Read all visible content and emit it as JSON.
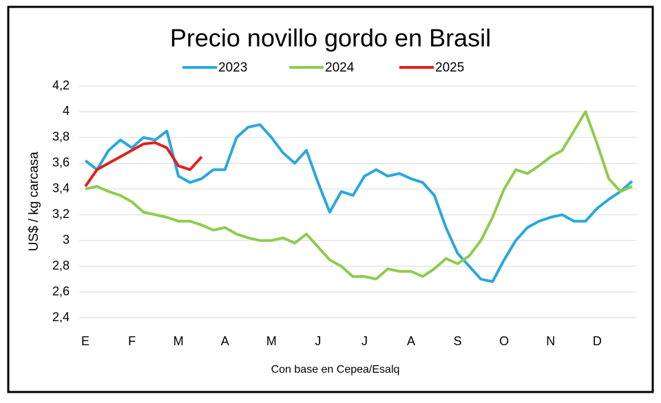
{
  "chart_data": {
    "type": "line",
    "title": "Precio novillo gordo en Brasil",
    "y_label": "US$ / kg carcasa",
    "note": "Con base en Cepea/Esalq",
    "categories": [
      "E",
      null,
      null,
      null,
      "F",
      null,
      null,
      null,
      "M",
      null,
      null,
      null,
      "A",
      null,
      null,
      null,
      "M",
      null,
      null,
      null,
      "J",
      null,
      null,
      null,
      "J",
      null,
      null,
      null,
      "A",
      null,
      null,
      null,
      "S",
      null,
      null,
      null,
      "O",
      null,
      null,
      null,
      "N",
      null,
      null,
      null,
      "D",
      null,
      null,
      null
    ],
    "series": [
      {
        "name": "2023",
        "color": "#2aa7e0",
        "values": [
          3.62,
          3.55,
          3.7,
          3.78,
          3.72,
          3.8,
          3.78,
          3.85,
          3.5,
          3.45,
          3.48,
          3.55,
          3.55,
          3.8,
          3.88,
          3.9,
          3.8,
          3.68,
          3.6,
          3.7,
          3.45,
          3.22,
          3.38,
          3.35,
          3.5,
          3.55,
          3.5,
          3.52,
          3.48,
          3.45,
          3.35,
          3.1,
          2.9,
          2.8,
          2.7,
          2.68,
          2.85,
          3.0,
          3.1,
          3.15,
          3.18,
          3.2,
          3.15,
          3.15,
          3.25,
          3.32,
          3.38,
          3.46
        ]
      },
      {
        "name": "2024",
        "color": "#8fcb4f",
        "values": [
          3.4,
          3.42,
          3.38,
          3.35,
          3.3,
          3.22,
          3.2,
          3.18,
          3.15,
          3.15,
          3.12,
          3.08,
          3.1,
          3.05,
          3.02,
          3.0,
          3.0,
          3.02,
          2.98,
          3.05,
          2.95,
          2.85,
          2.8,
          2.72,
          2.72,
          2.7,
          2.78,
          2.76,
          2.76,
          2.72,
          2.78,
          2.86,
          2.82,
          2.88,
          3.0,
          3.18,
          3.4,
          3.55,
          3.52,
          3.58,
          3.65,
          3.7,
          3.85,
          4.0,
          3.75,
          3.48,
          3.38,
          3.42
        ]
      },
      {
        "name": "2025",
        "color": "#e0201b",
        "values": [
          3.42,
          3.55,
          3.6,
          3.65,
          3.7,
          3.75,
          3.76,
          3.72,
          3.58,
          3.55,
          3.65,
          null,
          null,
          null,
          null,
          null,
          null,
          null,
          null,
          null,
          null,
          null,
          null,
          null,
          null,
          null,
          null,
          null,
          null,
          null,
          null,
          null,
          null,
          null,
          null,
          null,
          null,
          null,
          null,
          null,
          null,
          null,
          null,
          null,
          null,
          null,
          null,
          null
        ]
      }
    ],
    "ylim": [
      2.4,
      4.2
    ],
    "yticks": [
      {
        "value": 2.4,
        "label": "2,4"
      },
      {
        "value": 2.6,
        "label": "2,6"
      },
      {
        "value": 2.8,
        "label": "2,8"
      },
      3,
      {
        "value": 3.2,
        "label": "3,2"
      },
      {
        "value": 3.4,
        "label": "3,4"
      },
      {
        "value": 3.6,
        "label": "3,6"
      },
      {
        "value": 3.8,
        "label": "3,8"
      },
      4,
      {
        "value": 4.2,
        "label": "4,2"
      }
    ],
    "grid": true
  }
}
